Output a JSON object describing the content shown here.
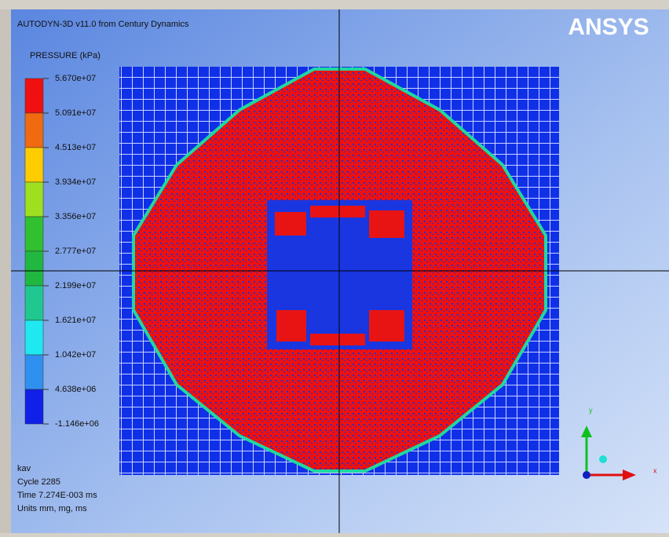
{
  "window": {
    "title": "AUTODYN-3D v11.0 from Century Dynamics",
    "logo": "ANSYS"
  },
  "legend": {
    "title": "PRESSURE (kPa)",
    "labels": [
      "5.670e+07",
      "5.091e+07",
      "4.513e+07",
      "3.934e+07",
      "3.356e+07",
      "2.777e+07",
      "2.199e+07",
      "1.621e+07",
      "1.042e+07",
      "4.638e+06",
      "-1.146e+06"
    ]
  },
  "status": {
    "lines": [
      "kav",
      "Cycle 2285",
      "Time 7.274E-003 ms",
      "Units mm, mg, ms"
    ]
  },
  "triad": {
    "y": "y",
    "x": "x"
  }
}
